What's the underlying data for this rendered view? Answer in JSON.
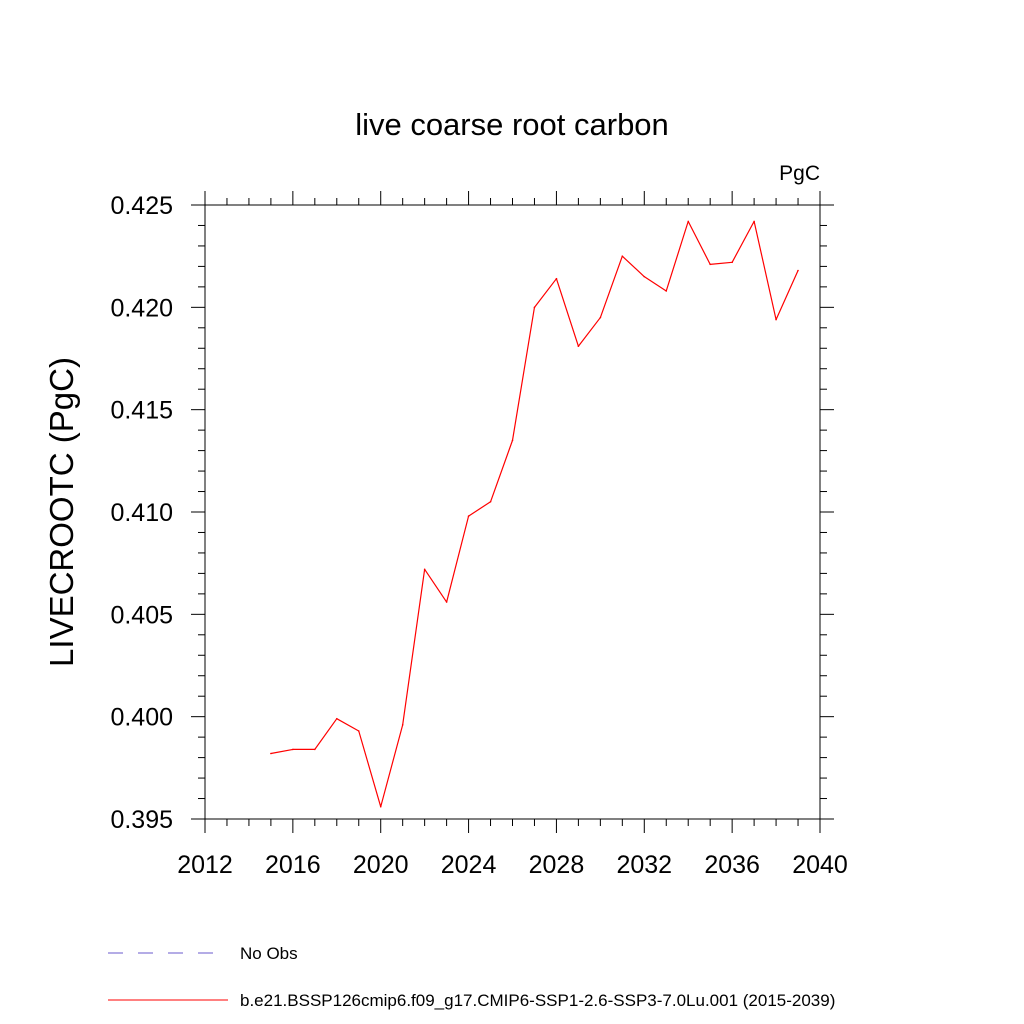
{
  "chart_data": {
    "type": "line",
    "title": "live coarse root carbon",
    "units_label": "PgC",
    "ylabel": "LIVECROOTC  (PgC)",
    "xlabel": "",
    "xlim": [
      2012,
      2040
    ],
    "ylim": [
      0.395,
      0.425
    ],
    "x_ticks": [
      2012,
      2016,
      2020,
      2024,
      2028,
      2032,
      2036,
      2040
    ],
    "x_tick_labels": [
      "2012",
      "2016",
      "2020",
      "2024",
      "2028",
      "2032",
      "2036",
      "2040"
    ],
    "y_ticks": [
      0.395,
      0.4,
      0.405,
      0.41,
      0.415,
      0.42,
      0.425
    ],
    "y_tick_labels": [
      "0.395",
      "0.400",
      "0.405",
      "0.410",
      "0.415",
      "0.420",
      "0.425"
    ],
    "grid": false,
    "legend_position": "bottom",
    "series": [
      {
        "name": "b.e21.BSSP126cmip6.f09_g17.CMIP6-SSP1-2.6-SSP3-7.0Lu.001 (2015-2039)",
        "color": "#ff0000",
        "line_style": "solid",
        "x": [
          2015,
          2016,
          2017,
          2018,
          2019,
          2020,
          2021,
          2022,
          2023,
          2024,
          2025,
          2026,
          2027,
          2028,
          2029,
          2030,
          2031,
          2032,
          2033,
          2034,
          2035,
          2036,
          2037,
          2038,
          2039
        ],
        "y": [
          0.3982,
          0.3984,
          0.3984,
          0.3999,
          0.3993,
          0.3956,
          0.3996,
          0.4072,
          0.4056,
          0.4098,
          0.4105,
          0.4135,
          0.42,
          0.4214,
          0.4181,
          0.4195,
          0.4225,
          0.4215,
          0.4208,
          0.4242,
          0.4221,
          0.4222,
          0.4242,
          0.4194,
          0.4218
        ]
      }
    ],
    "legend": [
      {
        "label": "No Obs",
        "color": "#6a5acd",
        "line_style": "dashed"
      },
      {
        "label": "b.e21.BSSP126cmip6.f09_g17.CMIP6-SSP1-2.6-SSP3-7.0Lu.001 (2015-2039)",
        "color": "#ff0000",
        "line_style": "solid"
      }
    ]
  }
}
